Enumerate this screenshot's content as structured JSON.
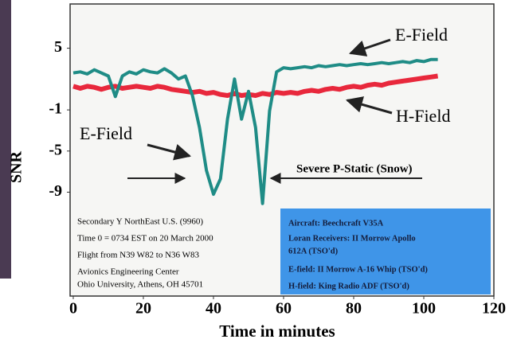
{
  "chart_data": {
    "type": "line",
    "xlabel": "Time in minutes",
    "ylabel": "SNR",
    "x": [
      0,
      2,
      4,
      6,
      8,
      10,
      12,
      14,
      16,
      18,
      20,
      22,
      24,
      26,
      28,
      30,
      32,
      34,
      36,
      38,
      40,
      42,
      44,
      46,
      48,
      50,
      52,
      54,
      56,
      58,
      60,
      62,
      64,
      66,
      68,
      70,
      72,
      74,
      76,
      78,
      80,
      82,
      84,
      86,
      88,
      90,
      92,
      94,
      96,
      98,
      100,
      102,
      104
    ],
    "series": [
      {
        "name": "E-Field",
        "color": "#1f8c86",
        "values": [
          2.6,
          2.7,
          2.5,
          2.9,
          2.6,
          2.3,
          0.3,
          2.3,
          2.7,
          2.5,
          2.9,
          2.7,
          2.6,
          3.0,
          2.6,
          2.0,
          2.3,
          0.4,
          -2.7,
          -6.9,
          -9.2,
          -7.7,
          -1.9,
          2.0,
          -1.9,
          0.8,
          -2.7,
          -10.1,
          -1.1,
          2.7,
          3.1,
          3.0,
          3.1,
          3.2,
          3.1,
          3.3,
          3.2,
          3.3,
          3.4,
          3.3,
          3.4,
          3.5,
          3.4,
          3.5,
          3.6,
          3.5,
          3.6,
          3.7,
          3.6,
          3.8,
          3.7,
          3.9,
          3.9
        ]
      },
      {
        "name": "H-Field",
        "color": "#e8283c",
        "values": [
          1.3,
          1.1,
          1.3,
          1.2,
          1.0,
          1.2,
          1.3,
          1.1,
          1.2,
          1.3,
          1.2,
          1.1,
          1.3,
          1.2,
          1.0,
          0.9,
          0.8,
          0.7,
          0.8,
          0.6,
          0.7,
          0.5,
          0.4,
          0.6,
          0.4,
          0.5,
          0.4,
          0.6,
          0.5,
          0.7,
          0.6,
          0.7,
          0.6,
          0.8,
          0.9,
          0.8,
          1.0,
          1.1,
          1.0,
          1.2,
          1.3,
          1.2,
          1.4,
          1.5,
          1.4,
          1.6,
          1.7,
          1.8,
          1.9,
          2.0,
          2.1,
          2.2,
          2.3
        ]
      }
    ],
    "xlim": [
      -0.9,
      120
    ],
    "xticks": [
      0,
      20,
      40,
      60,
      80,
      100,
      120
    ],
    "ylim": [
      -19.1,
      9.3
    ],
    "yticks": [
      5,
      -1,
      -5,
      -9
    ],
    "annotations": [
      "E-Field",
      "H-Field",
      "E-Field",
      "Severe P-Static (Snow)"
    ],
    "info_left": [
      "Secondary Y NorthEast U.S. (9960)",
      "Time 0 = 0734 EST on 20 March 2000",
      "Flight from N39 W82 to N36 W83",
      "Avionics Engineering Center",
      "Ohio University, Athens, OH 45701"
    ],
    "info_right": [
      "Aircraft: Beechcraft V35A",
      "Loran Receivers: II Morrow Apollo",
      "612A (TSO'd)",
      "E-field: II Morrow A-16 Whip (TSO'd)",
      "H-field: King Radio ADF (TSO'd)"
    ]
  }
}
